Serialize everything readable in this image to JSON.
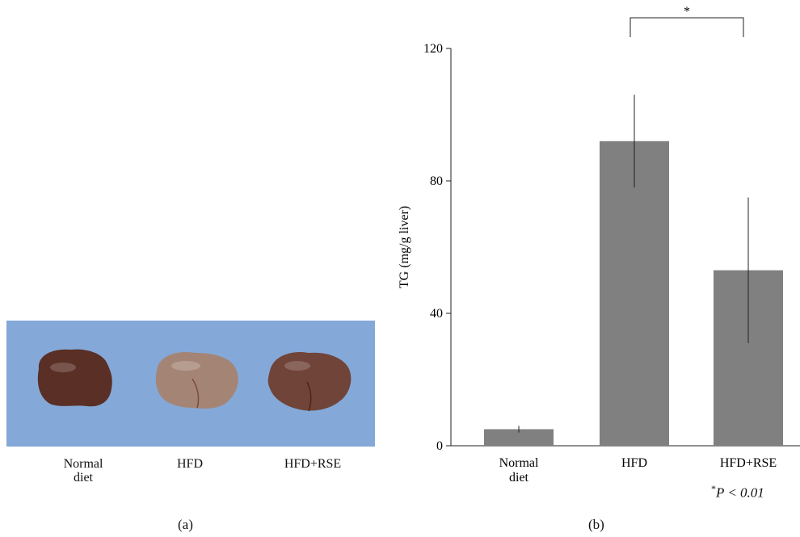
{
  "panel_a": {
    "label": "(a)",
    "liver_labels": [
      {
        "line1": "Normal",
        "line2": "diet"
      },
      {
        "line1": "HFD",
        "line2": ""
      },
      {
        "line1": "HFD+RSE",
        "line2": ""
      }
    ],
    "liver_colors": [
      "#5a2f25",
      "#a48575",
      "#704438"
    ],
    "background_color": "#84a9d8"
  },
  "panel_b": {
    "label": "(b)",
    "significance_marker": "*",
    "p_note_star": "*",
    "p_note_text": "P < 0.01"
  },
  "chart_data": {
    "type": "bar",
    "categories": [
      "Normal diet",
      "HFD",
      "HFD+RSE"
    ],
    "category_lines": [
      [
        "Normal",
        "diet"
      ],
      [
        "HFD"
      ],
      [
        "HFD+RSE"
      ]
    ],
    "values": [
      5,
      92,
      53
    ],
    "errors": [
      1,
      14,
      22
    ],
    "ylabel": "TG (mg/g liver)",
    "ylim": [
      0,
      120
    ],
    "yticks": [
      0,
      40,
      80,
      120
    ],
    "bar_color": "#808080",
    "significance": {
      "from": 1,
      "to": 2,
      "label": "*"
    }
  }
}
